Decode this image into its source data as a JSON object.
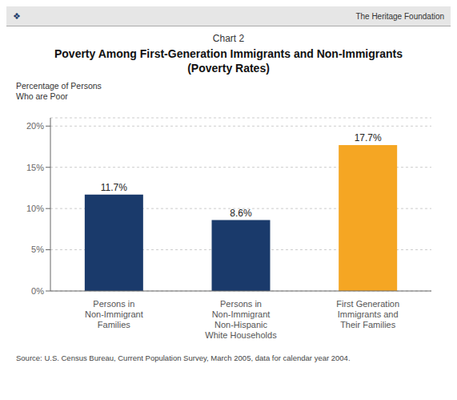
{
  "chart_data": {
    "type": "bar",
    "title": "Poverty Among First-Generation Immigrants and Non-Immigrants",
    "subtitle": "(Poverty Rates)",
    "y_label": "Percentage of Persons\nWho are Poor",
    "categories": [
      "Persons in\nNon-Immigrant\nFamilies",
      "Persons in\nNon-Immigrant\nNon-Hispanic\nWhite Households",
      "First Generation\nImmigrants and\nTheir Families"
    ],
    "values": [
      11.7,
      8.6,
      17.7
    ],
    "value_labels": [
      "11.7%",
      "8.6%",
      "17.7%"
    ],
    "data_labels": true,
    "colors": [
      "#1a3a6b",
      "#1a3a6b",
      "#f5a623"
    ],
    "ylim": [
      0,
      21
    ],
    "yticks": [
      {
        "value": 0,
        "label": "0%"
      },
      {
        "value": 5,
        "label": "5%"
      },
      {
        "value": 10,
        "label": "10%"
      },
      {
        "value": 15,
        "label": "15%"
      },
      {
        "value": 20,
        "label": "20%"
      }
    ],
    "grid": true,
    "annotations": [
      "❖",
      "The Heritage Foundation",
      "Chart 2",
      "Source: U.S. Census Bureau, Current Population Survey, March 2005, data for calendar year 2004."
    ]
  }
}
